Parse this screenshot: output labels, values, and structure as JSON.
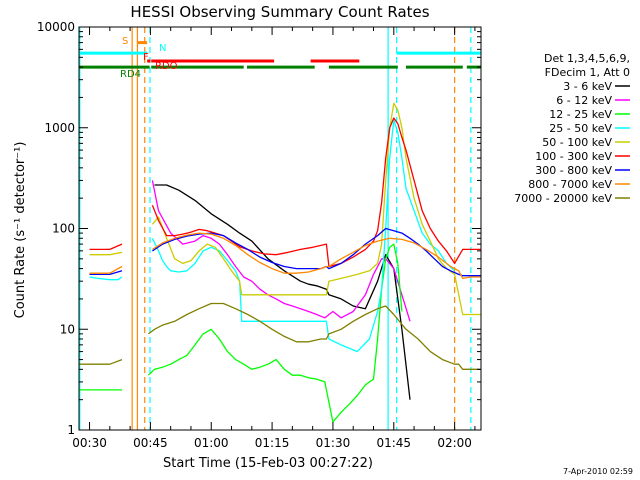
{
  "chart_data": {
    "type": "line",
    "title": "HESSI Observing Summary Count Rates",
    "xlabel": "Start Time (15-Feb-03 00:27:22)",
    "ylabel": "Count Rate (s⁻¹ detector⁻¹)",
    "y_scale": "log",
    "xlim": [
      27.4,
      126.5
    ],
    "ylim": [
      1,
      10000
    ],
    "grid": false,
    "legend_position": "right",
    "x_tick_labels": [
      "00:30",
      "00:45",
      "01:00",
      "01:15",
      "01:30",
      "01:45",
      "02:00"
    ],
    "y_tick_labels": [
      "1",
      "10",
      "100",
      "1000",
      "10000"
    ],
    "legend_header": [
      "Det 1,3,4,5,6,9,",
      "FDecim 1, Att 0"
    ],
    "timestamp": "7-Apr-2010 02:59",
    "series": [
      {
        "name": "3 - 6 keV",
        "color": "#000000",
        "x": [
          27.5,
          38,
          39,
          44.5,
          46,
          49,
          52,
          56,
          60,
          64,
          67,
          70,
          74,
          78,
          82,
          84,
          86,
          88.4,
          89,
          92,
          95,
          98,
          101,
          103,
          105,
          107,
          109,
          111,
          113,
          115,
          117,
          118,
          121,
          122,
          126.5
        ],
        "values": [
          null,
          null,
          null,
          null,
          270,
          270,
          240,
          190,
          140,
          110,
          90,
          75,
          50,
          38,
          30,
          28,
          27,
          25,
          22,
          20,
          17,
          16,
          30,
          55,
          40,
          10,
          2,
          null,
          null,
          null,
          null,
          null,
          null,
          null,
          null
        ]
      },
      {
        "name": "6 - 12 keV",
        "color": "#ff00ff",
        "x": [
          27.5,
          38,
          44.5,
          45.5,
          47,
          50,
          53,
          56,
          58,
          60,
          62,
          64,
          66,
          68,
          70,
          72,
          74,
          76,
          78,
          80,
          82,
          84,
          86,
          88,
          90,
          92,
          95,
          98,
          100,
          102,
          103,
          105,
          107,
          109,
          111,
          113,
          115,
          117,
          118,
          121,
          122,
          126.5
        ],
        "values": [
          null,
          null,
          null,
          300,
          150,
          90,
          70,
          75,
          85,
          80,
          70,
          55,
          42,
          33,
          30,
          25,
          22,
          20,
          18,
          17,
          16,
          15,
          14,
          13,
          15,
          13,
          15,
          22,
          35,
          50,
          50,
          40,
          22,
          12,
          null,
          null,
          null,
          null,
          null,
          null,
          null,
          null
        ]
      },
      {
        "name": "12 - 25 keV",
        "color": "#00ff00",
        "x": [
          27.5,
          30,
          35,
          38,
          39,
          44.5,
          46,
          48,
          50,
          52,
          54,
          56,
          58,
          60,
          62,
          64,
          66,
          68,
          70,
          72,
          74,
          76,
          78,
          80,
          82,
          84,
          86,
          88,
          90,
          92,
          94,
          96,
          98,
          100,
          101,
          102,
          103,
          104,
          105,
          106,
          107,
          108,
          110,
          112,
          114,
          116,
          118,
          120,
          122,
          124,
          126.5
        ],
        "values": [
          2.5,
          2.5,
          2.5,
          2.5,
          null,
          3.5,
          4,
          4.2,
          4.5,
          5,
          5.5,
          7,
          9,
          10,
          8,
          6,
          5,
          4.5,
          4,
          4.2,
          4.5,
          5,
          4,
          3.5,
          3.5,
          3.3,
          3.2,
          3,
          1.2,
          1.5,
          1.8,
          2.2,
          2.8,
          3.2,
          8,
          25,
          50,
          65,
          70,
          45,
          15,
          null,
          null,
          null,
          null,
          null,
          null,
          null,
          null,
          null,
          null
        ]
      },
      {
        "name": "25 - 50 keV",
        "color": "#00ffff",
        "x": [
          27.5,
          30,
          32,
          35,
          37,
          38,
          39,
          44.5,
          45.5,
          47,
          48,
          49,
          50,
          52,
          54,
          56,
          58,
          60,
          62,
          64,
          66,
          67,
          67.5,
          70,
          74,
          78,
          82,
          86,
          88.4,
          89,
          92,
          96,
          99,
          101,
          102,
          103,
          104,
          105,
          106,
          107,
          108,
          110,
          112,
          114,
          116,
          118,
          120,
          122,
          126.5
        ],
        "values": [
          null,
          33,
          32,
          31,
          31,
          33,
          null,
          null,
          80,
          60,
          48,
          42,
          38,
          37,
          38,
          45,
          60,
          65,
          60,
          48,
          38,
          30,
          12,
          12,
          12,
          12,
          12,
          12,
          12,
          8,
          7,
          6,
          8,
          15,
          25,
          100,
          500,
          1200,
          900,
          500,
          250,
          150,
          90,
          70,
          60,
          45,
          38,
          null,
          null
        ]
      },
      {
        "name": "50 - 100 keV",
        "color": "#cccc00",
        "x": [
          27.5,
          30,
          35,
          38,
          39,
          44.5,
          45.5,
          47,
          49,
          51,
          53,
          55,
          57,
          59,
          61,
          63,
          65,
          67,
          67.5,
          70,
          74,
          78,
          82,
          86,
          88.4,
          89,
          92,
          96,
          99,
          101,
          102,
          103,
          104,
          105,
          106,
          107,
          108,
          110,
          112,
          114,
          116,
          118,
          120,
          122,
          124,
          126.5
        ],
        "values": [
          null,
          55,
          55,
          58,
          null,
          null,
          110,
          130,
          80,
          50,
          45,
          48,
          60,
          70,
          65,
          50,
          38,
          30,
          22,
          22,
          22,
          22,
          22,
          22,
          22,
          30,
          32,
          35,
          38,
          45,
          70,
          300,
          1000,
          1750,
          1500,
          1000,
          500,
          200,
          110,
          75,
          50,
          40,
          35,
          14,
          14,
          14
        ]
      },
      {
        "name": "100 - 300 keV",
        "color": "#ff0000",
        "x": [
          27.5,
          30,
          35,
          38,
          39,
          44.5,
          45.5,
          47,
          49,
          51,
          53,
          55,
          57,
          59,
          61,
          63,
          65,
          67,
          70,
          73,
          76,
          79,
          82,
          85,
          88.4,
          89,
          92,
          95,
          98,
          100,
          101,
          102,
          103,
          104,
          105,
          106,
          107,
          108,
          110,
          112,
          114,
          116,
          118,
          120,
          122,
          124,
          126.5
        ],
        "values": [
          null,
          62,
          62,
          70,
          null,
          null,
          170,
          120,
          85,
          85,
          88,
          92,
          98,
          95,
          90,
          85,
          75,
          66,
          60,
          56,
          55,
          58,
          62,
          65,
          70,
          42,
          45,
          52,
          62,
          75,
          95,
          180,
          500,
          1000,
          1250,
          1100,
          800,
          600,
          300,
          150,
          100,
          75,
          60,
          45,
          62,
          62,
          62
        ]
      },
      {
        "name": "300 - 800 keV",
        "color": "#0000ff",
        "x": [
          27.5,
          30,
          35,
          38,
          39,
          44.5,
          45.5,
          48,
          51,
          54,
          57,
          60,
          63,
          66,
          69,
          72,
          75,
          78,
          81,
          84,
          87,
          88.4,
          89,
          92,
          95,
          98,
          101,
          103,
          105,
          107,
          109,
          111,
          113,
          115,
          117,
          119,
          121,
          122,
          124,
          126.5
        ],
        "values": [
          null,
          35,
          35,
          38,
          null,
          null,
          60,
          70,
          78,
          84,
          88,
          90,
          85,
          72,
          62,
          52,
          46,
          42,
          40,
          40,
          40,
          42,
          40,
          45,
          55,
          70,
          85,
          100,
          95,
          90,
          80,
          70,
          60,
          50,
          42,
          38,
          35,
          34,
          34,
          34
        ]
      },
      {
        "name": "800 - 7000 keV",
        "color": "#ff8800",
        "x": [
          27.5,
          30,
          35,
          38,
          39,
          44.5,
          45.5,
          48,
          51,
          54,
          57,
          60,
          63,
          66,
          69,
          72,
          75,
          78,
          81,
          84,
          87,
          88.4,
          89,
          92,
          95,
          98,
          101,
          104,
          107,
          110,
          113,
          116,
          119,
          121,
          122,
          124,
          126.5
        ],
        "values": [
          null,
          36,
          36,
          42,
          null,
          null,
          62,
          72,
          80,
          86,
          90,
          88,
          80,
          68,
          55,
          46,
          40,
          36,
          36,
          37,
          40,
          42,
          42,
          50,
          58,
          68,
          75,
          80,
          78,
          72,
          62,
          52,
          42,
          38,
          32,
          33,
          33
        ]
      },
      {
        "name": "7000 - 20000 keV",
        "color": "#808000",
        "x": [
          27.5,
          30,
          35,
          38,
          39,
          44.5,
          46,
          48,
          51,
          54,
          57,
          60,
          63,
          66,
          69,
          72,
          75,
          78,
          81,
          84,
          87,
          88.4,
          89,
          92,
          95,
          98,
          101,
          103,
          105,
          108,
          111,
          114,
          117,
          120,
          121,
          122,
          124,
          126.5
        ],
        "values": [
          4.5,
          4.5,
          4.5,
          5,
          null,
          9,
          10,
          11,
          12,
          14,
          16,
          18,
          18,
          16,
          14,
          12,
          10,
          8.5,
          7.5,
          7.5,
          8,
          8,
          9,
          10,
          12,
          14,
          16,
          17,
          14,
          10,
          8,
          6,
          5,
          4.5,
          4.5,
          4,
          4,
          4
        ]
      }
    ],
    "flags": [
      {
        "label": "S",
        "color": "#ff8800",
        "segments": [
          [
            41.8,
            44.2
          ]
        ],
        "y": 7000
      },
      {
        "label": "N",
        "color": "#00ffff",
        "segments": [
          [
            27.5,
            44.2
          ],
          [
            105.7,
            126.5
          ]
        ],
        "y": 5500
      },
      {
        "label": "F",
        "color": "#ff0000",
        "segments": [
          [
            44.2,
            45
          ]
        ],
        "y": 4600
      },
      {
        "label": "RDO",
        "color": "#ff0000",
        "segments": [
          [
            45.2,
            75.5
          ],
          [
            84.5,
            96.5
          ]
        ],
        "y": 4600
      },
      {
        "label": "RD4",
        "color": "#008000",
        "segments": [
          [
            27.5,
            44.8
          ],
          [
            45.2,
            68
          ],
          [
            68.8,
            85.5
          ],
          [
            89,
            106
          ],
          [
            108,
            122
          ],
          [
            123,
            126.5
          ]
        ],
        "y": 4000
      }
    ],
    "vlines": [
      {
        "x": 27.6,
        "color": "#00ffff",
        "style": "solid"
      },
      {
        "x": 40.5,
        "color": "#ff8800",
        "style": "solid"
      },
      {
        "x": 41.8,
        "color": "#ff8800",
        "style": "solid"
      },
      {
        "x": 43.6,
        "color": "#ff8800",
        "style": "dashed"
      },
      {
        "x": 44.9,
        "color": "#00ffff",
        "style": "dashed"
      },
      {
        "x": 103.6,
        "color": "#00ffff",
        "style": "solid"
      },
      {
        "x": 105.7,
        "color": "#00ffff",
        "style": "dashed"
      },
      {
        "x": 120,
        "color": "#ff8800",
        "style": "dashed"
      },
      {
        "x": 124,
        "color": "#00ffff",
        "style": "dashed"
      }
    ]
  }
}
